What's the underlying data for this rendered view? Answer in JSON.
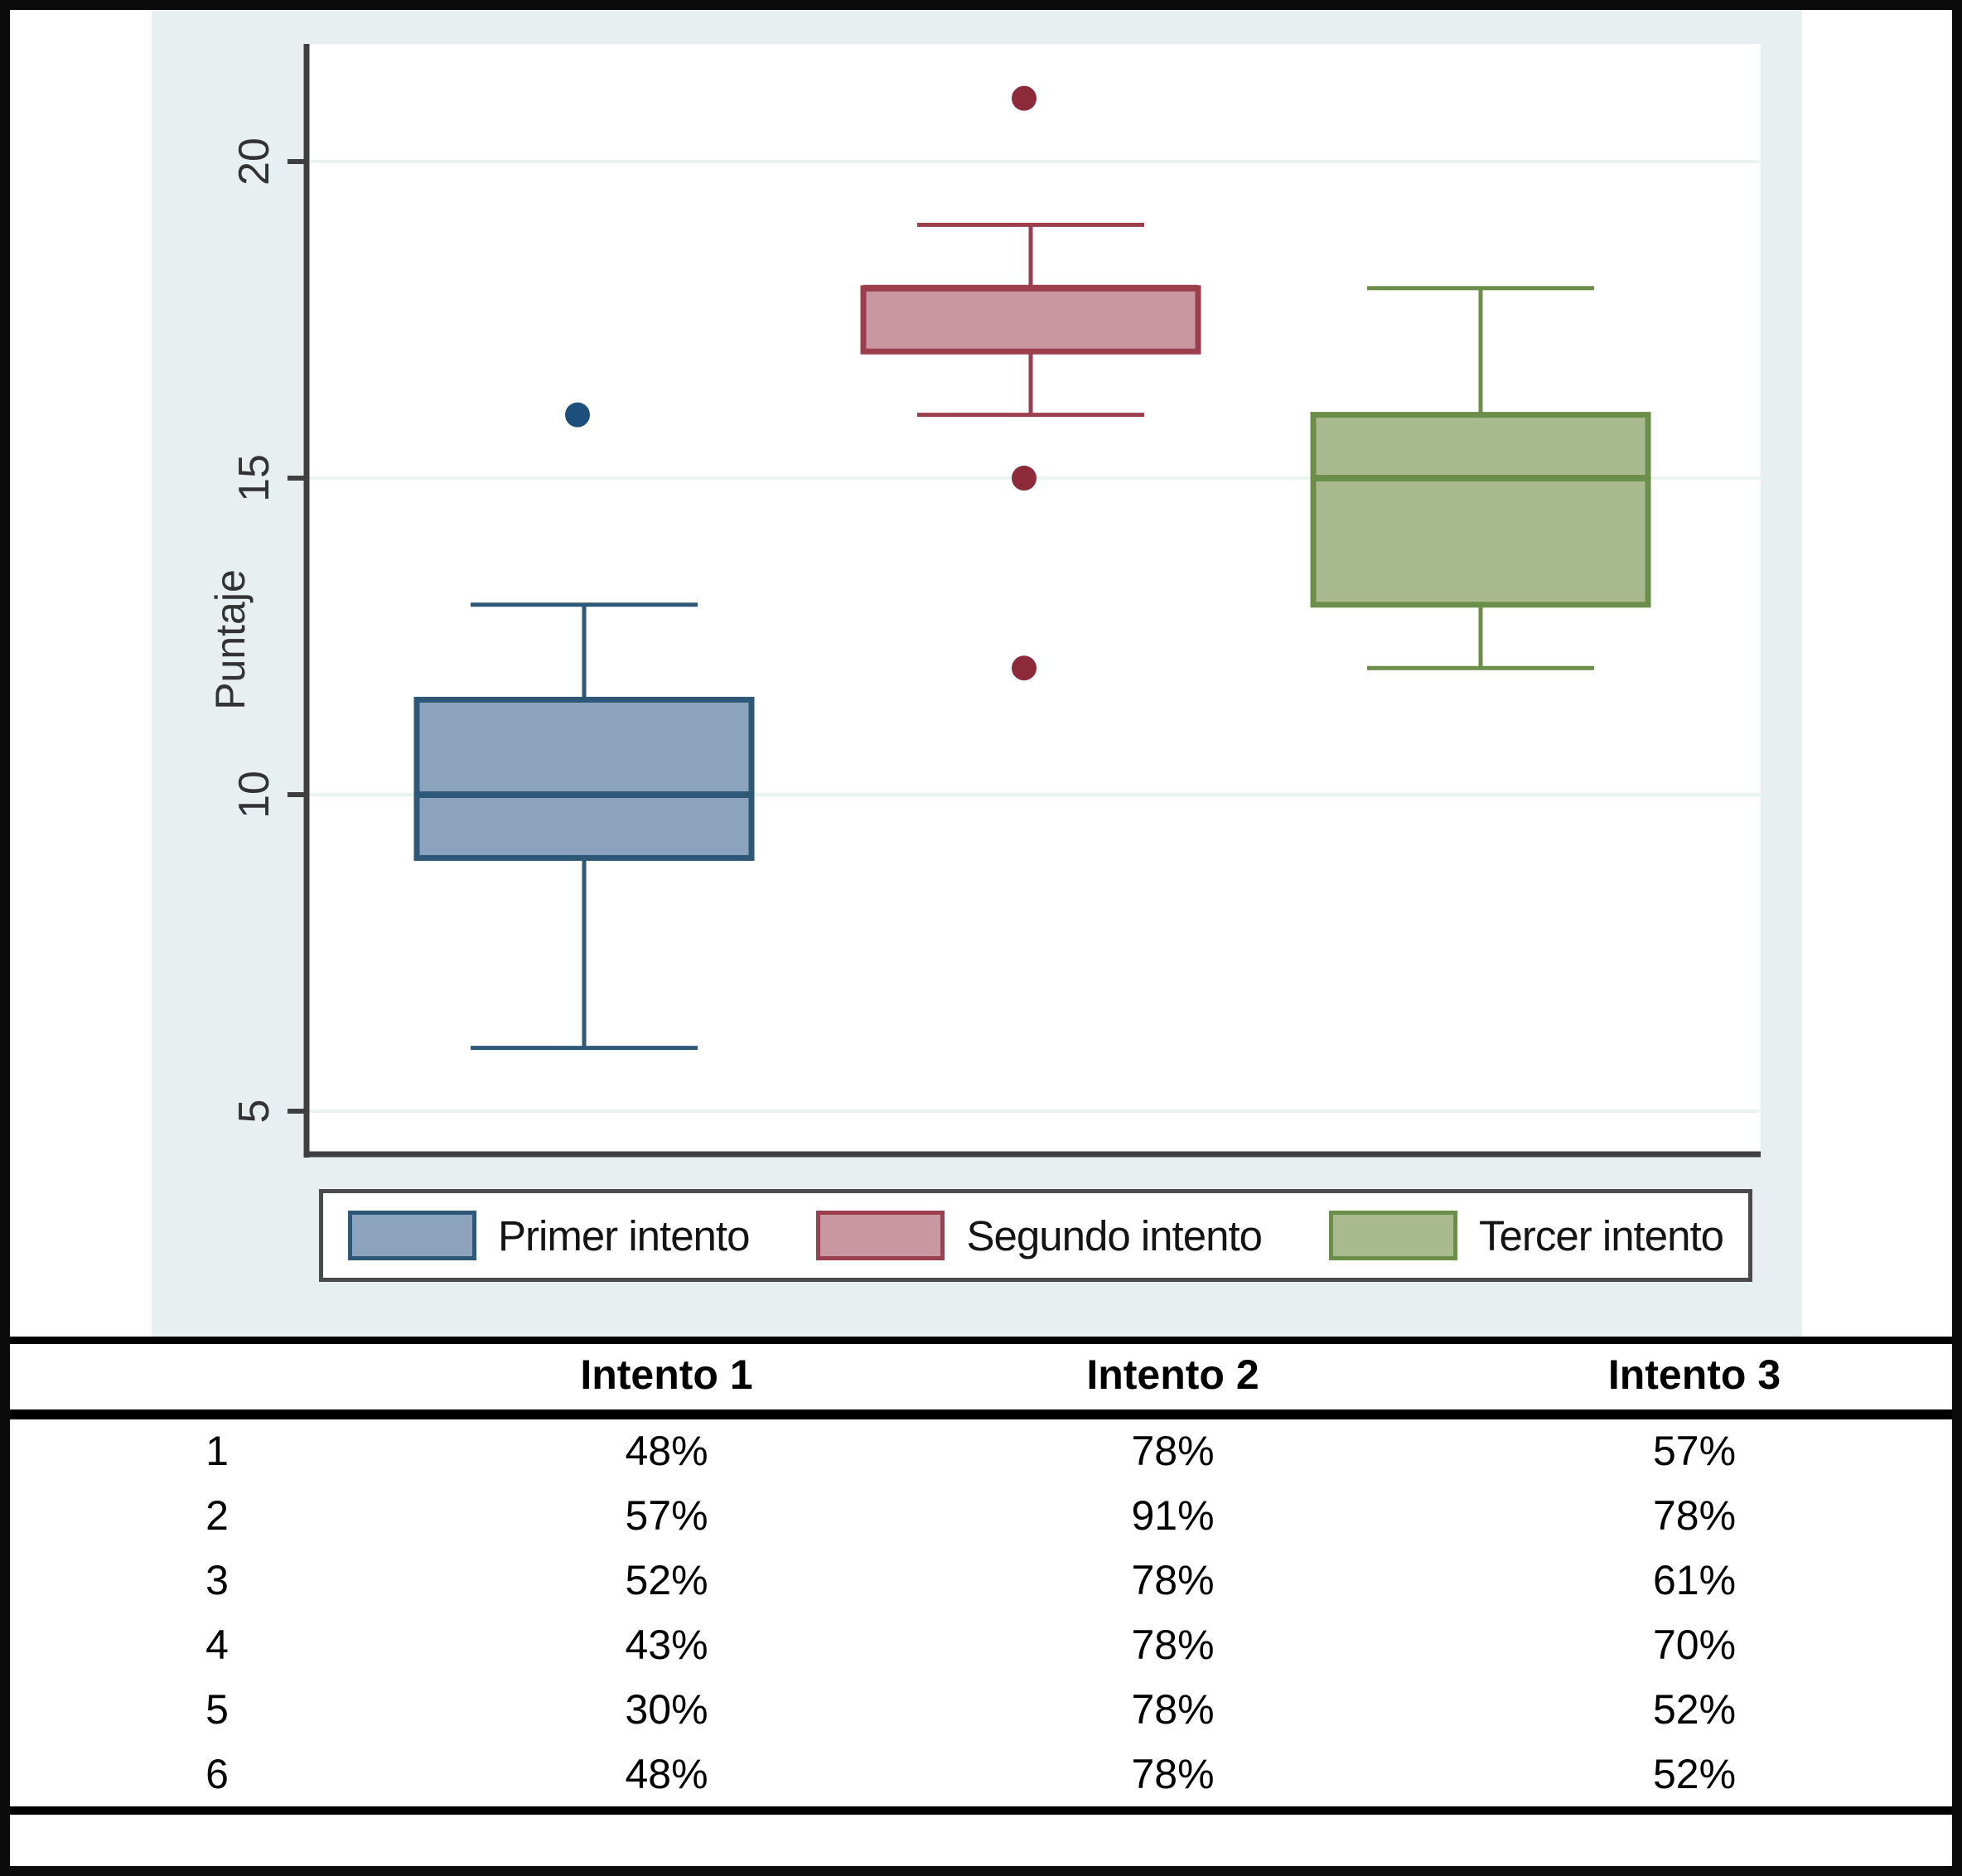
{
  "chart_data": {
    "type": "boxplot",
    "title": "",
    "ylabel": "Puntaje",
    "yticks": [
      20,
      15,
      10,
      5
    ],
    "ylim": [
      4.2,
      21.9
    ],
    "grid": true,
    "background": "#e8eff1",
    "plot_background": "#ffffff",
    "gridline_color": "#eaf4f0",
    "axis_color": "#3f3f3f",
    "legend_position": "bottom",
    "series": [
      {
        "name": "Primer intento",
        "fill": "#8ba3bd",
        "stroke": "#2e5878",
        "whisker_low": 6,
        "q1": 9,
        "median": 10,
        "q3": 11.5,
        "whisker_high": 13,
        "outliers": [
          16
        ],
        "outlier_color": "#1d4f7c"
      },
      {
        "name": "Segundo intento",
        "fill": "#c897a1",
        "stroke": "#9b3f4f",
        "whisker_low": 16,
        "q1": 17,
        "median": 18,
        "q3": 18,
        "whisker_high": 19,
        "outliers": [
          21,
          15,
          12
        ],
        "outlier_color": "#8e2b3b"
      },
      {
        "name": "Tercer intento",
        "fill": "#a9ba8e",
        "stroke": "#6b8f4a",
        "whisker_low": 12,
        "q1": 13,
        "median": 15,
        "q3": 16,
        "whisker_high": 18,
        "outliers": [],
        "outlier_color": "#6b8f4a"
      }
    ]
  },
  "table": {
    "headers": [
      "",
      "Intento 1",
      "Intento 2",
      "Intento 3"
    ],
    "rows": [
      {
        "label": "1",
        "values": [
          "48%",
          "78%",
          "57%"
        ]
      },
      {
        "label": "2",
        "values": [
          "57%",
          "91%",
          "78%"
        ]
      },
      {
        "label": "3",
        "values": [
          "52%",
          "78%",
          "61%"
        ]
      },
      {
        "label": "4",
        "values": [
          "43%",
          "78%",
          "70%"
        ]
      },
      {
        "label": "5",
        "values": [
          "30%",
          "78%",
          "52%"
        ]
      },
      {
        "label": "6",
        "values": [
          "48%",
          "78%",
          "52%"
        ]
      }
    ]
  }
}
